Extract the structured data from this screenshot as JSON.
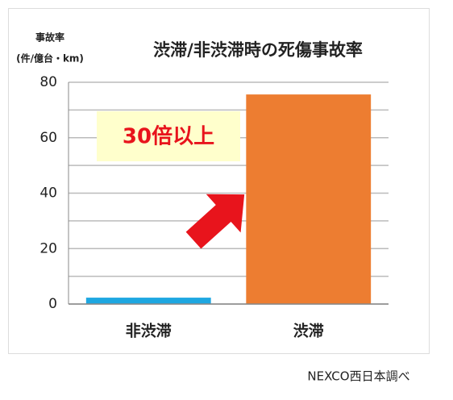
{
  "chart_data": {
    "type": "bar",
    "title": "渋滞/非渋滞時の死傷事故率",
    "y_label": "事故率",
    "y_unit": "(件/億台・km)",
    "categories": [
      "非渋滞",
      "渋滞"
    ],
    "values": [
      2.3,
      75.6
    ],
    "colors": [
      "#1ea7e1",
      "#ed7d31"
    ],
    "ylim": [
      0,
      80
    ],
    "yticks": [
      0,
      20,
      40,
      60,
      80
    ],
    "minor_yticks": [
      10,
      30,
      50,
      70
    ],
    "grid": true,
    "annotation": "30倍以上",
    "source": "NEXCO西日本調べ"
  }
}
